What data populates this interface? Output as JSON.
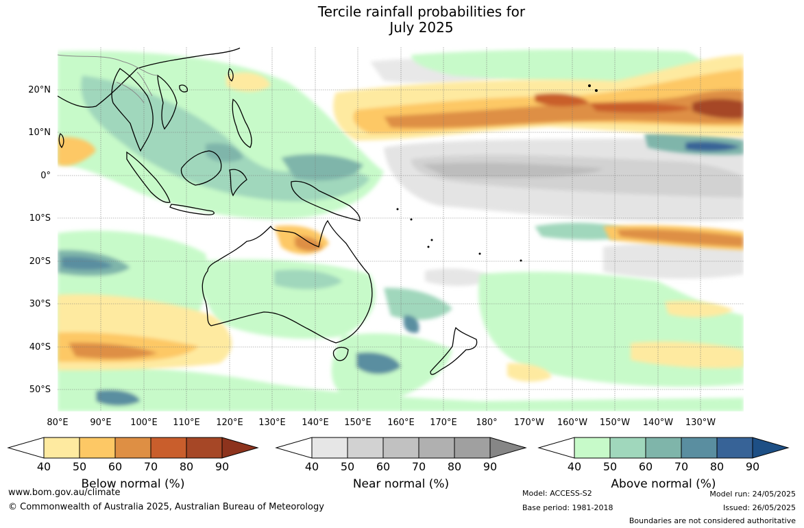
{
  "title": {
    "line1": "Tercile rainfall probabilities for",
    "line2": "July 2025"
  },
  "map": {
    "lat_labels": [
      "20°N",
      "10°N",
      "0°",
      "10°S",
      "20°S",
      "30°S",
      "40°S",
      "50°S"
    ],
    "lon_labels": [
      "80°E",
      "90°E",
      "100°E",
      "110°E",
      "120°E",
      "130°E",
      "140°E",
      "150°E",
      "160°E",
      "170°E",
      "180°",
      "170°W",
      "160°W",
      "150°W",
      "140°W",
      "130°W"
    ],
    "ocean_color": "#ffffff",
    "coast_color": "#000000",
    "grid_color": "#777777"
  },
  "legends": {
    "below": {
      "label": "Below normal (%)",
      "ticks": [
        "40",
        "50",
        "60",
        "70",
        "80",
        "90"
      ],
      "colors": [
        "#ffffff",
        "#feeaa0",
        "#fdc865",
        "#de8f44",
        "#c95e2c",
        "#a64726",
        "#8d331d"
      ]
    },
    "near": {
      "label": "Near normal (%)",
      "ticks": [
        "40",
        "50",
        "60",
        "70",
        "80",
        "90"
      ],
      "colors": [
        "#ffffff",
        "#e6e6e6",
        "#d2d2d2",
        "#c1c1c1",
        "#b0b0b0",
        "#a0a0a0",
        "#868686"
      ]
    },
    "above": {
      "label": "Above normal (%)",
      "ticks": [
        "40",
        "50",
        "60",
        "70",
        "80",
        "90"
      ],
      "colors": [
        "#ffffff",
        "#c7fac9",
        "#a0d7bc",
        "#7fb5aa",
        "#5a8ea0",
        "#376397",
        "#1d4f85"
      ]
    }
  },
  "footer": {
    "website": "www.bom.gov.au/climate",
    "copyright": "© Commonwealth of Australia 2025, Australian Bureau of Meteorology",
    "model": "Model: ACCESS-S2",
    "base_period": "Base period: 1981-2018",
    "model_run": "Model run: 24/05/2025",
    "issued": "Issued: 26/05/2025",
    "disclaimer": "Boundaries are not considered authoritative"
  }
}
